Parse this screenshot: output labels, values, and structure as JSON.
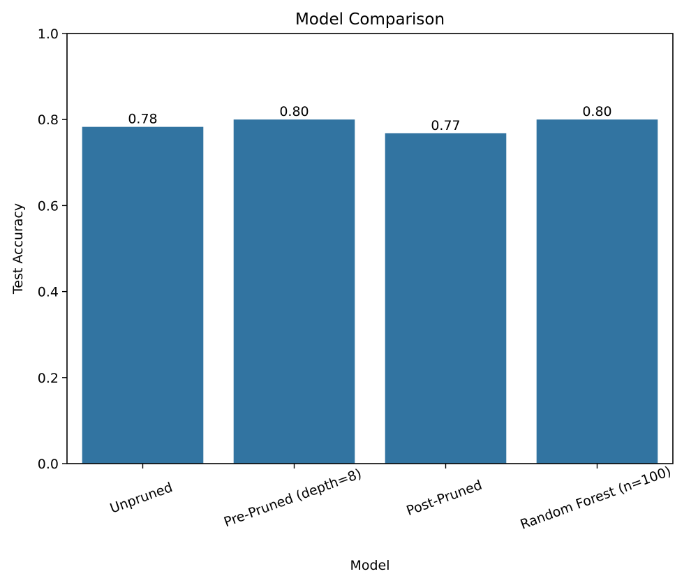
{
  "chart_data": {
    "type": "bar",
    "title": "Model Comparison",
    "xlabel": "Model",
    "ylabel": "Test Accuracy",
    "categories": [
      "Unpruned",
      "Pre-Pruned (depth=8)",
      "Post-Pruned",
      "Random Forest (n=100)"
    ],
    "values": [
      0.783,
      0.8,
      0.768,
      0.8
    ],
    "data_labels": [
      "0.78",
      "0.80",
      "0.77",
      "0.80"
    ],
    "ylim": [
      0,
      1.0
    ],
    "yticks": [
      0.0,
      0.2,
      0.4,
      0.6,
      0.8,
      1.0
    ],
    "ytick_labels": [
      "0.0",
      "0.2",
      "0.4",
      "0.6",
      "0.8",
      "1.0"
    ],
    "grid": false,
    "bar_color": "#3274a1"
  }
}
